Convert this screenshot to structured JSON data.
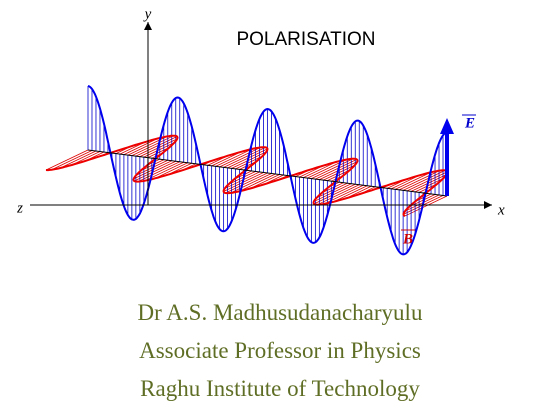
{
  "title": "POLARISATION",
  "diagram": {
    "y_axis_label": "y",
    "z_axis_label": "z",
    "x_axis_label": "x",
    "e_label": "E",
    "b_label": "B"
  },
  "credits": [
    "Dr A.S. Madhusudanacharyulu",
    "Associate Professor in Physics",
    "Raghu Institute of Technology"
  ]
}
